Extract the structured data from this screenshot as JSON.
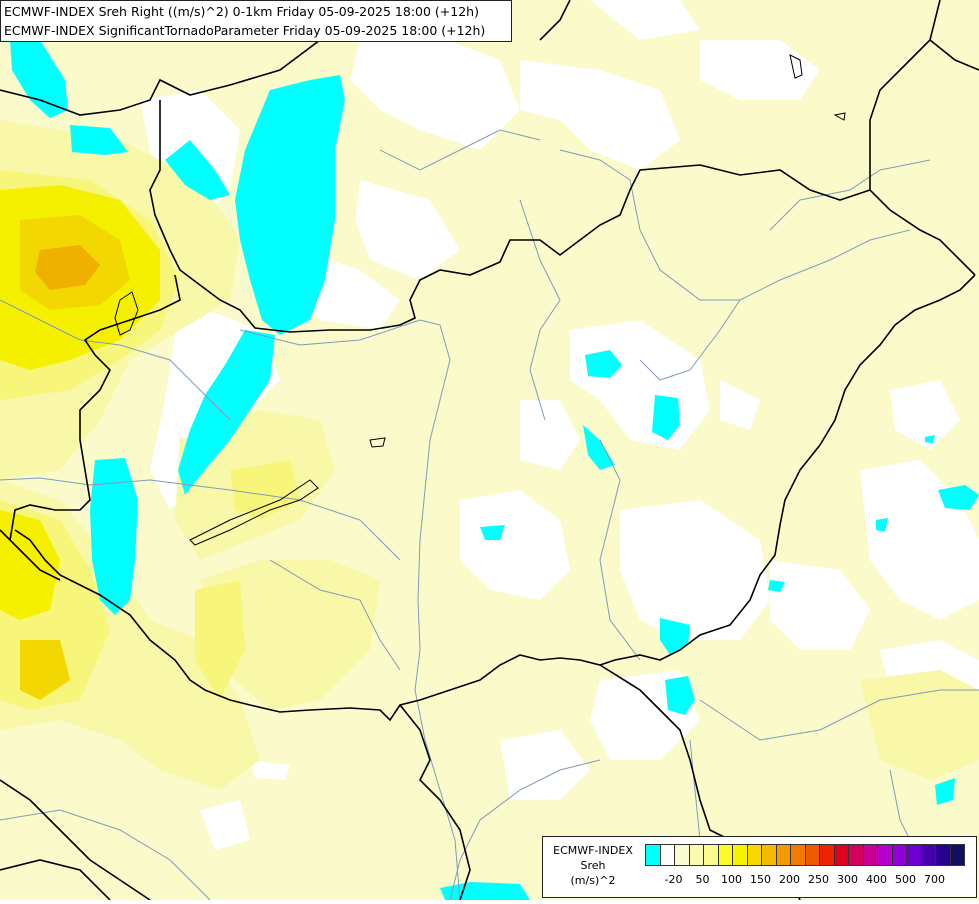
{
  "title": {
    "line1": "ECMWF-INDEX Sreh Right ((m/s)^2) 0-1km Friday 05-09-2025 18:00 (+12h)",
    "line2": "ECMWF-INDEX SignificantTornadoParameter Friday 05-09-2025 18:00 (+12h)"
  },
  "legend": {
    "label_line1": "ECMWF-INDEX",
    "label_line2": "Sreh",
    "label_line3": "(m/s)^2",
    "colors": [
      "#00ffff",
      "#ffffff",
      "#fbfbd3",
      "#fbfbb0",
      "#fbfb8d",
      "#fbfb2a",
      "#f8f400",
      "#f8d800",
      "#f6b800",
      "#f59a00",
      "#f27a00",
      "#ef5a00",
      "#ec2400",
      "#e00020",
      "#d4005c",
      "#c80096",
      "#b400c8",
      "#9000d8",
      "#6c00d0",
      "#4600b0",
      "#280090",
      "#101060"
    ],
    "ticks": [
      "-20",
      "50",
      "100",
      "150",
      "200",
      "250",
      "300",
      "400",
      "500",
      "700"
    ]
  },
  "map": {
    "colors": {
      "cyan": "#00ffff",
      "white": "#ffffff",
      "light_yellow": "#fafacb",
      "pale_yellow": "#f8f8a8",
      "yellow": "#f7f57a",
      "strong_yellow": "#f5f000",
      "gold": "#f2d800",
      "orange": "#f0b000",
      "river": "#7f9cbc",
      "border": "#000000"
    }
  }
}
